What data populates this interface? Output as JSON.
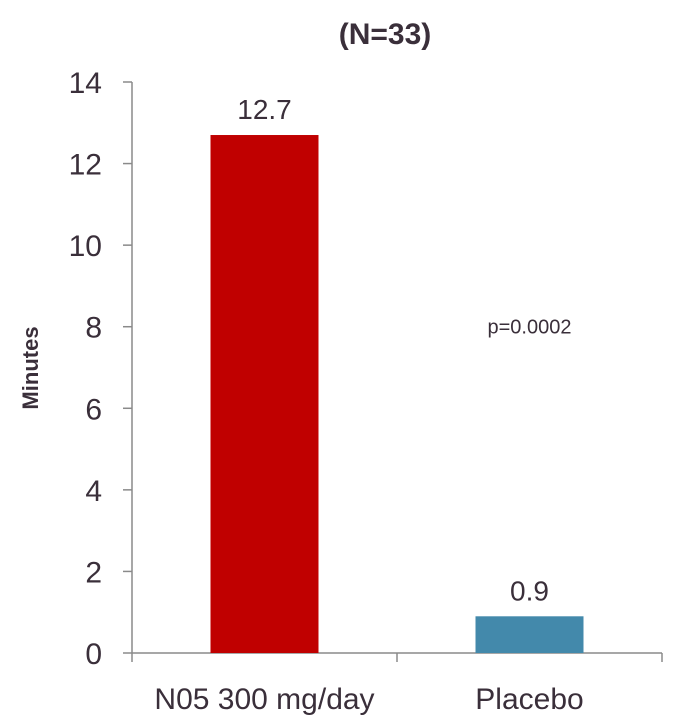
{
  "chart_data": {
    "type": "bar",
    "title": "(N=33)",
    "ylabel": "Minutes",
    "xlabel": "",
    "categories": [
      "N05 300 mg/day",
      "Placebo"
    ],
    "values": [
      12.7,
      0.9
    ],
    "value_labels": [
      "12.7",
      "0.9"
    ],
    "bar_colors": [
      "#c00000",
      "#4389ab"
    ],
    "ylim": [
      0,
      14
    ],
    "yticks": [
      0,
      2,
      4,
      6,
      8,
      10,
      12,
      14
    ],
    "grid": false,
    "legend": "none",
    "annotations": [
      {
        "text": "p=0.0002"
      }
    ]
  }
}
